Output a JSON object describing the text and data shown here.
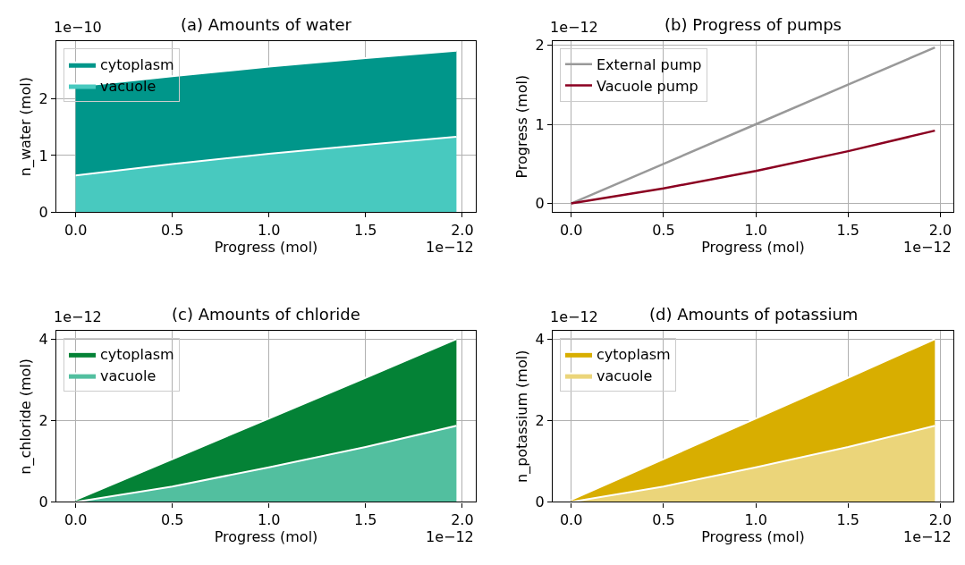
{
  "chart_data": [
    {
      "type": "area",
      "title": "(a) Amounts of water",
      "xlabel": "Progress (mol)",
      "ylabel": "n_water (mol)",
      "stacked": true,
      "x": [
        0,
        0.5,
        1.0,
        1.5,
        1.97
      ],
      "series": [
        {
          "name": "vacuole",
          "color": "#48c9bf",
          "values": [
            0.65,
            0.85,
            1.03,
            1.19,
            1.33
          ]
        },
        {
          "name": "cytoplasm",
          "color": "#00968a",
          "values": [
            1.57,
            1.55,
            1.54,
            1.53,
            1.52
          ]
        }
      ],
      "xlim": [
        -0.1,
        2.07
      ],
      "ylim": [
        0,
        3.02
      ],
      "xticks": [
        {
          "value": 0,
          "label": "0.0"
        },
        {
          "value": 0.5,
          "label": "0.5"
        },
        {
          "value": 1,
          "label": "1.0"
        },
        {
          "value": 1.5,
          "label": "1.5"
        },
        {
          "value": 2,
          "label": "2.0"
        }
      ],
      "yticks": [
        0,
        1,
        2
      ],
      "annotations": [
        "1e−10",
        "1e−12"
      ],
      "grid": true,
      "legend": "top left"
    },
    {
      "type": "line",
      "title": "(b) Progress of pumps",
      "xlabel": "Progress (mol)",
      "ylabel": "Progress (mol)",
      "x": [
        0,
        0.5,
        1.0,
        1.5,
        1.97
      ],
      "series": [
        {
          "name": "External pump",
          "color": "#999999",
          "values": [
            0,
            0.5,
            1.0,
            1.5,
            1.97
          ]
        },
        {
          "name": "Vacuole pump",
          "color": "#8b0021",
          "values": [
            0,
            0.19,
            0.41,
            0.66,
            0.92
          ]
        }
      ],
      "xlim": [
        -0.1,
        2.07
      ],
      "ylim": [
        -0.11,
        2.05
      ],
      "xticks": [
        {
          "value": 0,
          "label": "0.0"
        },
        {
          "value": 0.5,
          "label": "0.5"
        },
        {
          "value": 1,
          "label": "1.0"
        },
        {
          "value": 1.5,
          "label": "1.5"
        },
        {
          "value": 2,
          "label": "2.0"
        }
      ],
      "yticks": [
        0,
        1,
        2
      ],
      "annotations": [
        "1e−12",
        "1e−12"
      ],
      "grid": true,
      "legend": "top left",
      "line_style": "solid",
      "marker": "none"
    },
    {
      "type": "area",
      "title": "(c) Amounts of chloride",
      "xlabel": "Progress (mol)",
      "ylabel": "n_chloride (mol)",
      "stacked": true,
      "x": [
        0,
        0.5,
        1.0,
        1.5,
        1.97
      ],
      "series": [
        {
          "name": "vacuole",
          "color": "#52bf9f",
          "values": [
            0,
            0.38,
            0.85,
            1.35,
            1.87
          ]
        },
        {
          "name": "cytoplasm",
          "color": "#048236",
          "values": [
            0.05,
            0.67,
            1.2,
            1.7,
            2.13
          ]
        }
      ],
      "xlim": [
        -0.1,
        2.07
      ],
      "ylim": [
        0,
        4.2
      ],
      "xticks": [
        {
          "value": 0,
          "label": "0.0"
        },
        {
          "value": 0.5,
          "label": "0.5"
        },
        {
          "value": 1,
          "label": "1.0"
        },
        {
          "value": 1.5,
          "label": "1.5"
        },
        {
          "value": 2,
          "label": "2.0"
        }
      ],
      "yticks": [
        0,
        2,
        4
      ],
      "annotations": [
        "1e−12",
        "1e−12"
      ],
      "grid": true,
      "legend": "top left"
    },
    {
      "type": "area",
      "title": "(d) Amounts of potassium",
      "xlabel": "Progress (mol)",
      "ylabel": "n_potassium (mol)",
      "stacked": true,
      "x": [
        0,
        0.5,
        1.0,
        1.5,
        1.97
      ],
      "series": [
        {
          "name": "vacuole",
          "color": "#ebd57a",
          "values": [
            0,
            0.38,
            0.85,
            1.35,
            1.87
          ]
        },
        {
          "name": "cytoplasm",
          "color": "#d8ae00",
          "values": [
            0.05,
            0.67,
            1.2,
            1.7,
            2.13
          ]
        }
      ],
      "xlim": [
        -0.1,
        2.07
      ],
      "ylim": [
        0,
        4.2
      ],
      "xticks": [
        {
          "value": 0,
          "label": "0.0"
        },
        {
          "value": 0.5,
          "label": "0.5"
        },
        {
          "value": 1,
          "label": "1.0"
        },
        {
          "value": 1.5,
          "label": "1.5"
        },
        {
          "value": 2,
          "label": "2.0"
        }
      ],
      "yticks": [
        0,
        2,
        4
      ],
      "annotations": [
        "1e−12",
        "1e−12"
      ],
      "grid": true,
      "legend": "top left"
    }
  ]
}
